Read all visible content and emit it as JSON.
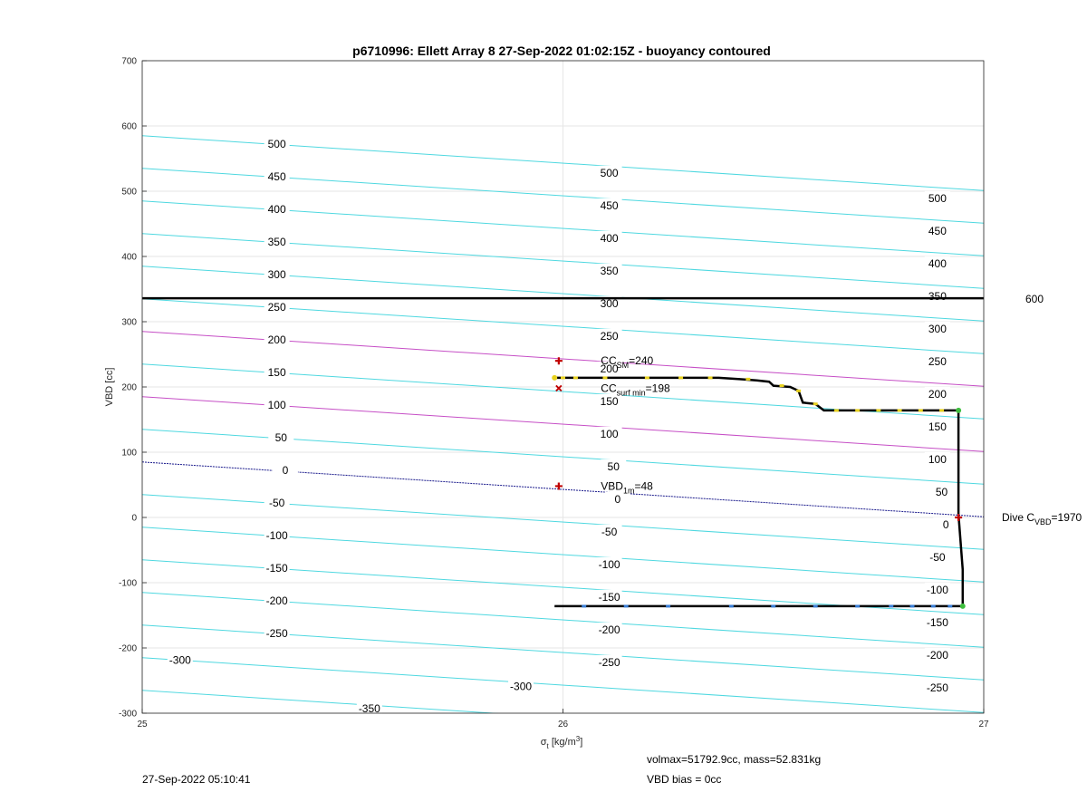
{
  "chart_data": {
    "type": "line",
    "title": "p6710996: Ellett Array 8 27-Sep-2022 01:02:15Z - buoyancy contoured",
    "xlabel_symbol": "σ",
    "xlabel_sub": "t",
    "xlabel_rest": " [kg/m",
    "xlabel_sup": "3",
    "xlabel_close": "]",
    "ylabel": "VBD [cc]",
    "xlim": [
      25,
      27
    ],
    "ylim": [
      -300,
      700
    ],
    "xticks": [
      25,
      26,
      27
    ],
    "yticks": [
      -300,
      -200,
      -100,
      0,
      100,
      200,
      300,
      400,
      500,
      600,
      700
    ],
    "grid": true,
    "contour_slope": -42,
    "contour_intercepts": [
      {
        "value": 500,
        "y0": 585
      },
      {
        "value": 450,
        "y0": 535
      },
      {
        "value": 400,
        "y0": 485
      },
      {
        "value": 350,
        "y0": 435
      },
      {
        "value": 300,
        "y0": 385
      },
      {
        "value": 250,
        "y0": 335
      },
      {
        "value": 200,
        "y0": 285,
        "color": "magenta"
      },
      {
        "value": 150,
        "y0": 235
      },
      {
        "value": 100,
        "y0": 185,
        "color": "magenta"
      },
      {
        "value": 50,
        "y0": 135
      },
      {
        "value": 0,
        "y0": 85,
        "color": "navy"
      },
      {
        "value": -50,
        "y0": 35
      },
      {
        "value": -100,
        "y0": -15
      },
      {
        "value": -150,
        "y0": -65
      },
      {
        "value": -200,
        "y0": -115
      },
      {
        "value": -250,
        "y0": -165
      },
      {
        "value": -300,
        "y0": -215
      },
      {
        "value": -350,
        "y0": -265
      }
    ],
    "contour_labels": [
      {
        "text": "500",
        "x": 25.32,
        "y": 572
      },
      {
        "text": "450",
        "x": 25.32,
        "y": 522
      },
      {
        "text": "400",
        "x": 25.32,
        "y": 472
      },
      {
        "text": "350",
        "x": 25.32,
        "y": 422
      },
      {
        "text": "300",
        "x": 25.32,
        "y": 372
      },
      {
        "text": "250",
        "x": 25.32,
        "y": 322
      },
      {
        "text": "200",
        "x": 25.32,
        "y": 272
      },
      {
        "text": "150",
        "x": 25.32,
        "y": 222
      },
      {
        "text": "100",
        "x": 25.32,
        "y": 172
      },
      {
        "text": "50",
        "x": 25.33,
        "y": 122
      },
      {
        "text": "0",
        "x": 25.34,
        "y": 72
      },
      {
        "text": "-50",
        "x": 25.32,
        "y": 22
      },
      {
        "text": "-100",
        "x": 25.32,
        "y": -28
      },
      {
        "text": "-150",
        "x": 25.32,
        "y": -78
      },
      {
        "text": "-200",
        "x": 25.32,
        "y": -128
      },
      {
        "text": "-250",
        "x": 25.32,
        "y": -178
      },
      {
        "text": "-300",
        "x": 25.09,
        "y": -219
      },
      {
        "text": "-350",
        "x": 25.54,
        "y": -293
      },
      {
        "text": "500",
        "x": 26.11,
        "y": 528
      },
      {
        "text": "450",
        "x": 26.11,
        "y": 478
      },
      {
        "text": "400",
        "x": 26.11,
        "y": 428
      },
      {
        "text": "350",
        "x": 26.11,
        "y": 378
      },
      {
        "text": "300",
        "x": 26.11,
        "y": 328
      },
      {
        "text": "250",
        "x": 26.11,
        "y": 278
      },
      {
        "text": "200",
        "x": 26.11,
        "y": 228
      },
      {
        "text": "150",
        "x": 26.11,
        "y": 178
      },
      {
        "text": "100",
        "x": 26.11,
        "y": 128
      },
      {
        "text": "50",
        "x": 26.12,
        "y": 78
      },
      {
        "text": "0",
        "x": 26.13,
        "y": 28
      },
      {
        "text": "-50",
        "x": 26.11,
        "y": -22
      },
      {
        "text": "-100",
        "x": 26.11,
        "y": -72
      },
      {
        "text": "-150",
        "x": 26.11,
        "y": -122
      },
      {
        "text": "-200",
        "x": 26.11,
        "y": -172
      },
      {
        "text": "-250",
        "x": 26.11,
        "y": -222
      },
      {
        "text": "-300",
        "x": 25.9,
        "y": -259
      },
      {
        "text": "500",
        "x": 26.89,
        "y": 489
      },
      {
        "text": "450",
        "x": 26.89,
        "y": 439
      },
      {
        "text": "400",
        "x": 26.89,
        "y": 389
      },
      {
        "text": "350",
        "x": 26.89,
        "y": 339
      },
      {
        "text": "300",
        "x": 26.89,
        "y": 289
      },
      {
        "text": "250",
        "x": 26.89,
        "y": 239
      },
      {
        "text": "200",
        "x": 26.89,
        "y": 189
      },
      {
        "text": "150",
        "x": 26.89,
        "y": 139
      },
      {
        "text": "100",
        "x": 26.89,
        "y": 89
      },
      {
        "text": "50",
        "x": 26.9,
        "y": 39
      },
      {
        "text": "0",
        "x": 26.91,
        "y": -11
      },
      {
        "text": "-50",
        "x": 26.89,
        "y": -61
      },
      {
        "text": "-100",
        "x": 26.89,
        "y": -111
      },
      {
        "text": "-150",
        "x": 26.89,
        "y": -161
      },
      {
        "text": "-200",
        "x": 26.89,
        "y": -211
      },
      {
        "text": "-250",
        "x": 26.89,
        "y": -261
      }
    ],
    "hline": {
      "y": 336,
      "label": "600"
    },
    "dive_profile": [
      [
        25.98,
        214
      ],
      [
        26.37,
        214
      ],
      [
        26.42,
        212
      ],
      [
        26.46,
        210
      ],
      [
        26.49,
        208
      ],
      [
        26.5,
        202
      ],
      [
        26.54,
        200
      ],
      [
        26.56,
        194
      ],
      [
        26.57,
        176
      ],
      [
        26.6,
        174
      ],
      [
        26.62,
        164
      ],
      [
        26.94,
        164
      ],
      [
        26.94,
        150
      ],
      [
        26.94,
        70
      ],
      [
        26.94,
        5
      ]
    ],
    "climb_profile": [
      [
        26.94,
        5
      ],
      [
        26.95,
        -80
      ],
      [
        26.95,
        -136
      ],
      [
        25.98,
        -136
      ]
    ],
    "dive_points": [
      [
        26.0,
        214
      ],
      [
        26.03,
        214
      ],
      [
        26.1,
        214
      ],
      [
        26.2,
        214
      ],
      [
        26.28,
        214
      ],
      [
        26.35,
        214
      ],
      [
        26.44,
        212
      ],
      [
        26.52,
        202
      ],
      [
        26.56,
        194
      ],
      [
        26.6,
        174
      ],
      [
        26.65,
        164
      ],
      [
        26.7,
        164
      ],
      [
        26.75,
        164
      ],
      [
        26.8,
        164
      ],
      [
        26.85,
        164
      ],
      [
        26.9,
        164
      ]
    ],
    "climb_points": [
      [
        26.05,
        -136
      ],
      [
        26.15,
        -136
      ],
      [
        26.25,
        -136
      ],
      [
        26.4,
        -136
      ],
      [
        26.5,
        -136
      ],
      [
        26.6,
        -136
      ],
      [
        26.7,
        -136
      ],
      [
        26.78,
        -136
      ],
      [
        26.83,
        -136
      ],
      [
        26.88,
        -136
      ],
      [
        26.92,
        -136
      ]
    ],
    "markers": {
      "cc_sm": {
        "x": 25.99,
        "y": 240
      },
      "cc_surf_min": {
        "x": 25.99,
        "y": 198
      },
      "vbd_1m": {
        "x": 25.99,
        "y": 48
      },
      "dive_cvbd": {
        "x": 26.94,
        "y": 0
      },
      "start_dive": {
        "x": 25.98,
        "y": 214
      },
      "end_dive": {
        "x": 26.94,
        "y": 164
      },
      "climb_end": {
        "x": 26.95,
        "y": -136
      }
    },
    "annotations": {
      "cc_sm": {
        "main": "CC",
        "sub": "SM",
        "rest": "=240"
      },
      "cc_surf_min": {
        "main": "CC",
        "sub": "surf min",
        "rest": "=198"
      },
      "vbd_1m": {
        "main": "VBD",
        "sub": "1m",
        "rest": "=48"
      },
      "dive_cvbd": {
        "main": "Dive C",
        "sub": "VBD",
        "rest": "=1970"
      }
    },
    "colors": {
      "contour": "#4fd8e0",
      "contour_magenta": "#c64fc6",
      "contour_zero": "#1a1a8c",
      "hline": "#000000",
      "profile": "#000000",
      "dive_pts": "#e8d21f",
      "climb_pts": "#3b7fd6",
      "marker": "#c00000",
      "end_pt": "#3fbf3f",
      "grid": "#e6e6e6"
    }
  },
  "footer": {
    "timestamp": "27-Sep-2022 05:10:41",
    "volmax": "volmax=51792.9cc, mass=52.831kg",
    "bias": "VBD bias = 0cc"
  }
}
